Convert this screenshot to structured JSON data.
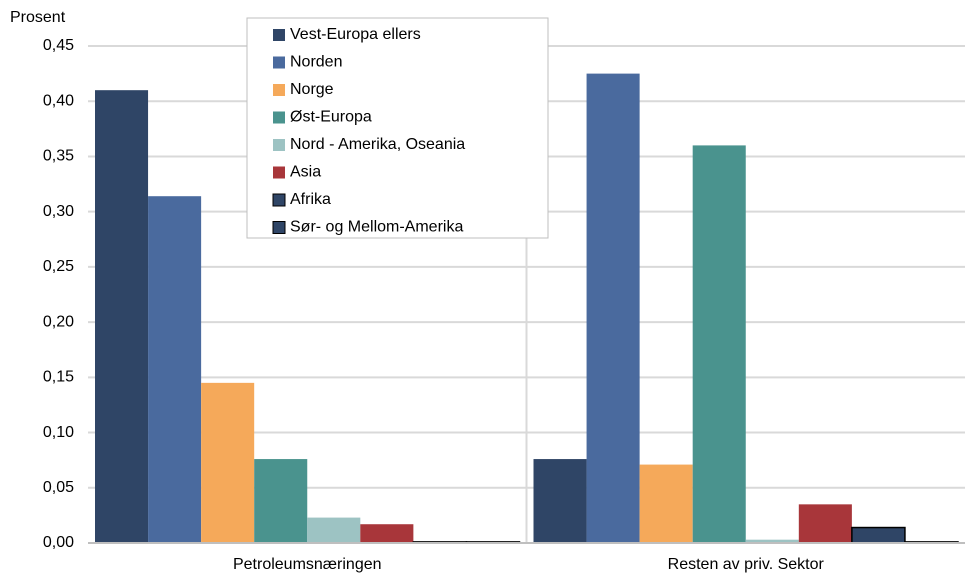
{
  "chart_data": {
    "type": "bar",
    "y_label": "Prosent",
    "categories": [
      "Petroleumsnæringen",
      "Resten av priv. Sektor"
    ],
    "series": [
      {
        "name": "Vest-Europa ellers",
        "color": "#2f4566",
        "values": [
          0.41,
          0.076
        ]
      },
      {
        "name": "Norden",
        "color": "#4a6a9e",
        "values": [
          0.314,
          0.425
        ]
      },
      {
        "name": "Norge",
        "color": "#f5a95a",
        "values": [
          0.145,
          0.071
        ]
      },
      {
        "name": "Øst-Europa",
        "color": "#4a938e",
        "values": [
          0.076,
          0.36
        ]
      },
      {
        "name": "Nord - Amerika, Oseania",
        "color": "#9dc3c3",
        "values": [
          0.023,
          0.003
        ]
      },
      {
        "name": "Asia",
        "color": "#a8363a",
        "values": [
          0.017,
          0.035
        ]
      },
      {
        "name": "Afrika",
        "color": "#2f4566",
        "values": [
          0.001,
          0.014
        ]
      },
      {
        "name": "Sør- og Mellom-Amerika",
        "color": "#2f4566",
        "values": [
          0.001,
          0.001
        ]
      }
    ],
    "ylim": [
      0,
      0.45
    ],
    "yticks": [
      {
        "value": 0,
        "label": "0,00"
      },
      {
        "value": 0.05,
        "label": "0,05"
      },
      {
        "value": 0.1,
        "label": "0,10"
      },
      {
        "value": 0.15,
        "label": "0,15"
      },
      {
        "value": 0.2,
        "label": "0,20"
      },
      {
        "value": 0.25,
        "label": "0,25"
      },
      {
        "value": 0.3,
        "label": "0,30"
      },
      {
        "value": 0.35,
        "label": "0,35"
      },
      {
        "value": 0.4,
        "label": "0,40"
      },
      {
        "value": 0.45,
        "label": "0,45"
      }
    ],
    "grid": true
  }
}
